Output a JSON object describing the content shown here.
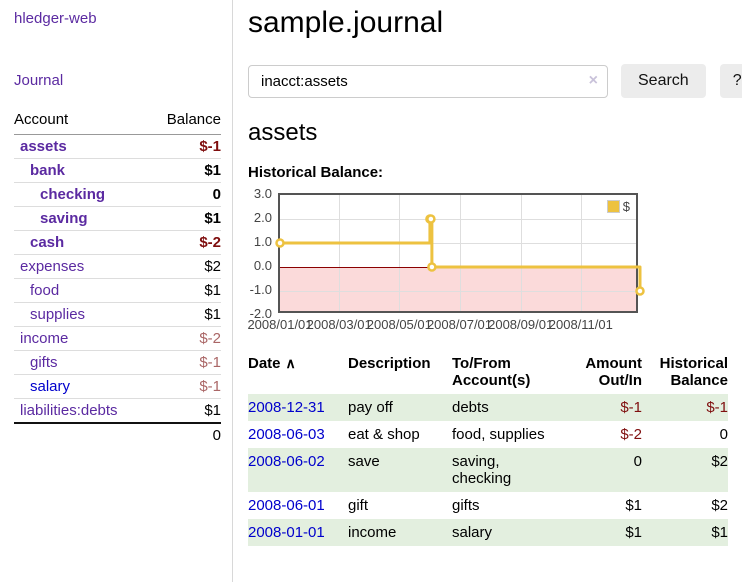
{
  "colors": {
    "accent_purple": "#5b2aa1",
    "link_blue": "#0000cc",
    "negative_strong": "#7f0e0e",
    "negative_soft": "#aa6666",
    "row_green": "#e3efdf",
    "chart_gold": "#edc240",
    "chart_negative_fill": "#fbdada",
    "chart_zero_line": "#8b0000",
    "chart_border": "#545454"
  },
  "sidebar": {
    "brand": "hledger-web",
    "nav_journal": "Journal",
    "table_headers": {
      "account": "Account",
      "balance": "Balance"
    },
    "accounts": [
      {
        "name": "assets",
        "level": 1,
        "bold": true,
        "balance": "$-1",
        "neg": "strong"
      },
      {
        "name": "bank",
        "level": 2,
        "bold": true,
        "balance": "$1"
      },
      {
        "name": "checking",
        "level": 3,
        "bold": true,
        "balance": "0"
      },
      {
        "name": "saving",
        "level": 3,
        "bold": true,
        "balance": "$1"
      },
      {
        "name": "cash",
        "level": 2,
        "bold": true,
        "balance": "$-2",
        "neg": "strong"
      },
      {
        "name": "expenses",
        "level": 1,
        "bold": false,
        "balance": "$2"
      },
      {
        "name": "food",
        "level": 2,
        "bold": false,
        "balance": "$1"
      },
      {
        "name": "supplies",
        "level": 2,
        "bold": false,
        "balance": "$1"
      },
      {
        "name": "income",
        "level": 1,
        "bold": false,
        "balance": "$-2",
        "neg": "soft"
      },
      {
        "name": "gifts",
        "level": 2,
        "bold": false,
        "balance": "$-1",
        "neg": "soft"
      },
      {
        "name": "salary",
        "level": 2,
        "bold": false,
        "balance": "$-1",
        "neg": "soft",
        "link_blue": true
      },
      {
        "name": "liabilities:debts",
        "level": 1,
        "bold": false,
        "balance": "$1"
      }
    ],
    "total": "0"
  },
  "header": {
    "title": "sample.journal"
  },
  "search": {
    "value": "inacct:assets",
    "clear_icon": "×",
    "search_label": "Search",
    "help_label": "?"
  },
  "account_page": {
    "heading": "assets",
    "chart_label": "Historical Balance:"
  },
  "chart_data": {
    "type": "line",
    "title": "Historical Balance",
    "steps": true,
    "series": [
      {
        "name": "$",
        "color": "#edc240",
        "points": [
          [
            "2008-01-01",
            1
          ],
          [
            "2008-06-01",
            2
          ],
          [
            "2008-06-02",
            2
          ],
          [
            "2008-06-03",
            0
          ],
          [
            "2008-12-31",
            -1
          ]
        ]
      }
    ],
    "x_range": [
      "2008-01-01",
      "2008-12-31"
    ],
    "ylim": [
      -2,
      3
    ],
    "y_ticks": [
      "3.0",
      "2.0",
      "1.0",
      "0.0",
      "-1.0",
      "-2.0"
    ],
    "x_ticks": [
      "2008/01/01",
      "2008/03/01",
      "2008/05/01",
      "2008/07/01",
      "2008/09/01",
      "2008/11/01"
    ],
    "legend": {
      "label": "$",
      "position": "top-right"
    },
    "markings": {
      "negative_region_below": 0,
      "zero_line_at": 0
    },
    "grid": true
  },
  "register": {
    "headers": {
      "date": "Date",
      "description": "Description",
      "accounts": "To/From\nAccount(s)",
      "amount": "Amount\nOut/In",
      "balance": "Historical\nBalance"
    },
    "sort_icon": "∧",
    "rows": [
      {
        "date": "2008-12-31",
        "description": "pay off",
        "accounts": "debts",
        "amount": "$-1",
        "amount_neg": true,
        "balance": "$-1",
        "balance_neg": true
      },
      {
        "date": "2008-06-03",
        "description": "eat & shop",
        "accounts": "food, supplies",
        "amount": "$-2",
        "amount_neg": true,
        "balance": "0",
        "balance_neg": false
      },
      {
        "date": "2008-06-02",
        "description": "save",
        "accounts": "saving,\nchecking",
        "amount": "0",
        "amount_neg": false,
        "balance": "$2",
        "balance_neg": false
      },
      {
        "date": "2008-06-01",
        "description": "gift",
        "accounts": "gifts",
        "amount": "$1",
        "amount_neg": false,
        "balance": "$2",
        "balance_neg": false
      },
      {
        "date": "2008-01-01",
        "description": "income",
        "accounts": "salary",
        "amount": "$1",
        "amount_neg": false,
        "balance": "$1",
        "balance_neg": false
      }
    ]
  }
}
